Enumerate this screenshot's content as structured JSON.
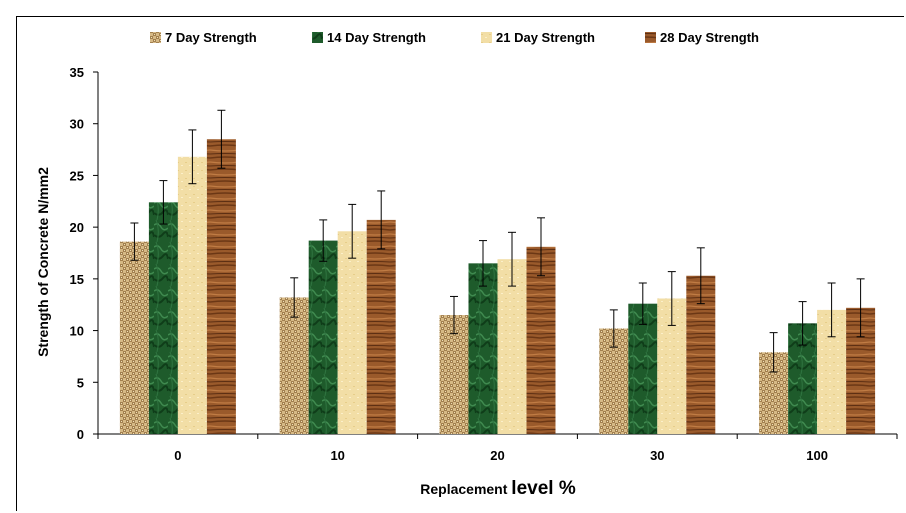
{
  "chart_data": {
    "type": "bar",
    "title": "",
    "xlabel_parts": [
      "Replacement ",
      "level %"
    ],
    "ylabel": "Strength of Concrete N/mm2",
    "categories": [
      "0",
      "10",
      "20",
      "30",
      "100"
    ],
    "ylim": [
      0,
      35
    ],
    "yticks": [
      0,
      5,
      10,
      15,
      20,
      25,
      30,
      35
    ],
    "grid": false,
    "legend_position": "top",
    "series": [
      {
        "name": "7 Day Strength",
        "color": "#d8bc8a",
        "pattern": "weave",
        "values": [
          18.6,
          13.2,
          11.5,
          10.2,
          7.9
        ],
        "errors": [
          1.8,
          1.9,
          1.8,
          1.8,
          1.9
        ]
      },
      {
        "name": "14 Day Strength",
        "color": "#1f5a2c",
        "pattern": "marble",
        "values": [
          22.4,
          18.7,
          16.5,
          12.6,
          10.7
        ],
        "errors": [
          2.1,
          2.0,
          2.2,
          2.0,
          2.1
        ]
      },
      {
        "name": "21 Day Strength",
        "color": "#f1dca2",
        "pattern": "paper",
        "values": [
          26.8,
          19.6,
          16.9,
          13.1,
          12.0
        ],
        "errors": [
          2.6,
          2.6,
          2.6,
          2.6,
          2.6
        ]
      },
      {
        "name": "28 Day Strength",
        "color": "#98582a",
        "pattern": "wood",
        "values": [
          28.5,
          20.7,
          18.1,
          15.3,
          12.2
        ],
        "errors": [
          2.8,
          2.8,
          2.8,
          2.7,
          2.8
        ]
      }
    ]
  }
}
